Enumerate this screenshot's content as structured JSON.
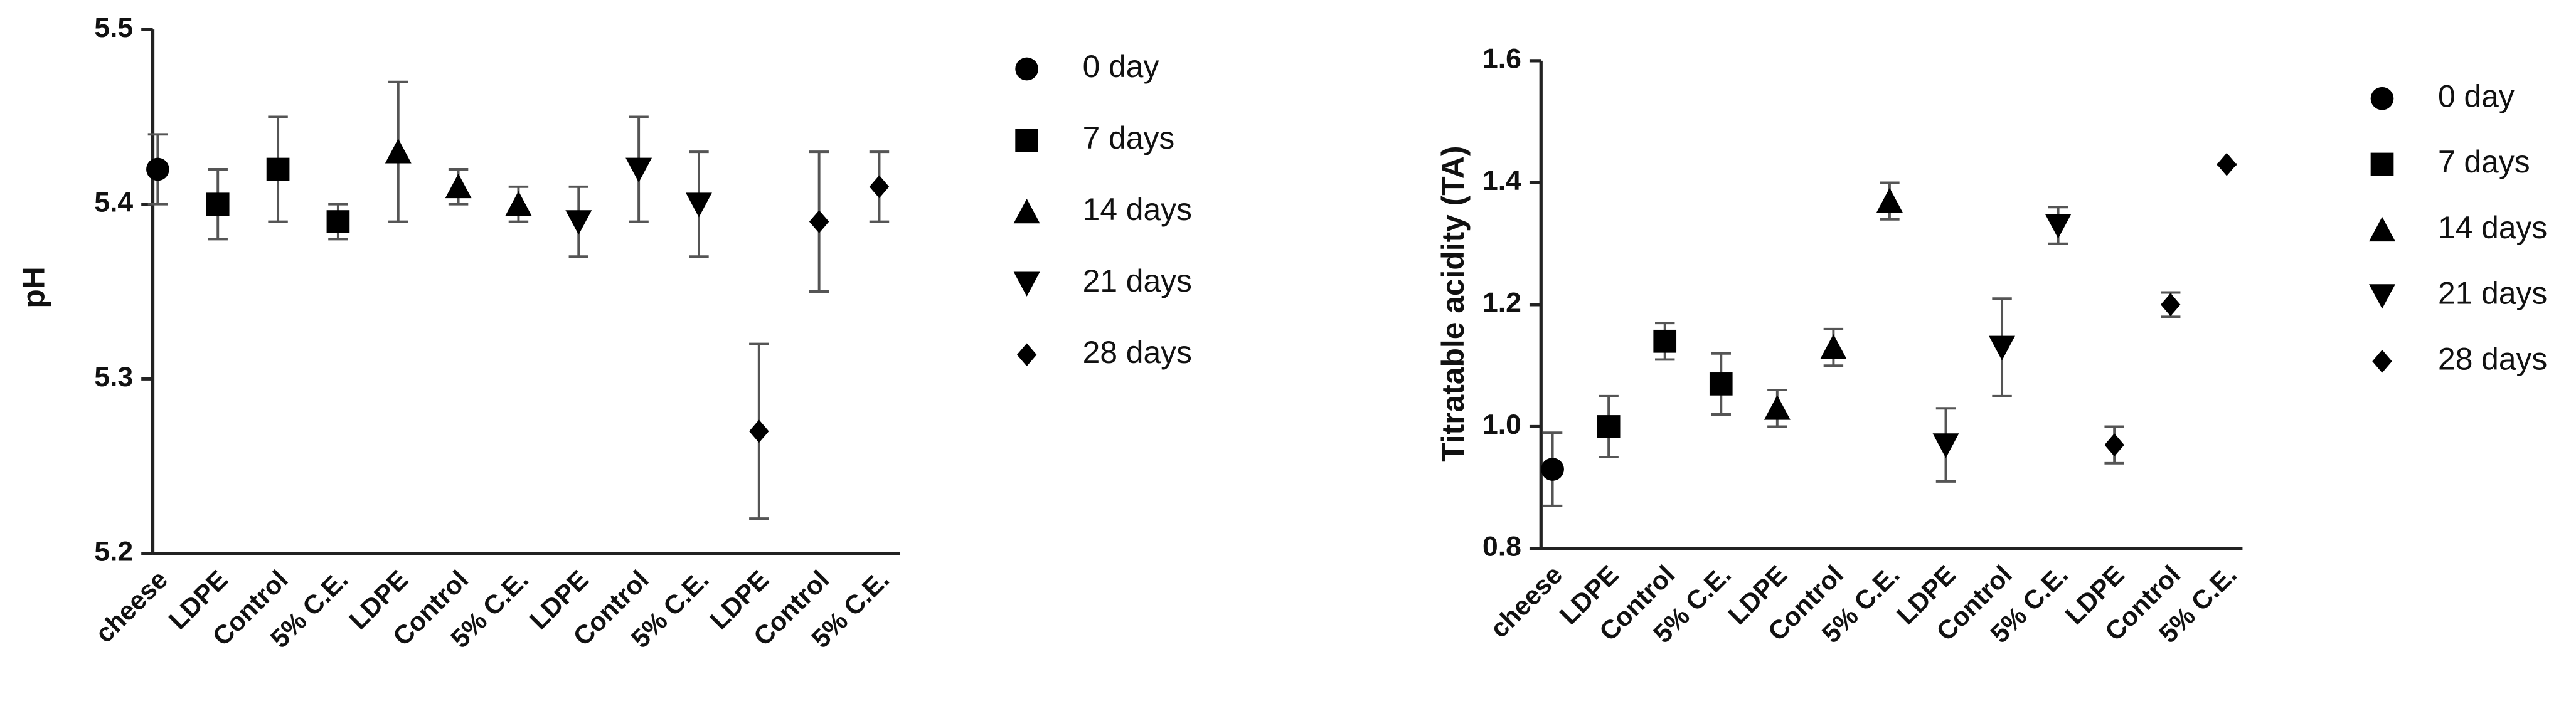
{
  "chart_data": [
    {
      "type": "scatter",
      "ylabel": "pH",
      "categories": [
        "cheese",
        "LDPE",
        "Control",
        "5% C.E.",
        "LDPE",
        "Control",
        "5% C.E.",
        "LDPE",
        "Control",
        "5% C.E.",
        "LDPE",
        "Control",
        "5% C.E."
      ],
      "ylim": [
        5.2,
        5.5
      ],
      "yticks": [
        5.2,
        5.3,
        5.4,
        5.5
      ],
      "series": [
        {
          "name": "0 day",
          "color": "#000000",
          "marker": "circle",
          "values": [
            5.42,
            null,
            null,
            null,
            null,
            null,
            null,
            null,
            null,
            null,
            null,
            null,
            null
          ],
          "errors": [
            0.02,
            null,
            null,
            null,
            null,
            null,
            null,
            null,
            null,
            null,
            null,
            null,
            null
          ]
        },
        {
          "name": "7 days",
          "color": "#000000",
          "marker": "square",
          "values": [
            null,
            5.4,
            5.42,
            5.39,
            null,
            null,
            null,
            null,
            null,
            null,
            null,
            null,
            null
          ],
          "errors": [
            null,
            0.02,
            0.03,
            0.01,
            null,
            null,
            null,
            null,
            null,
            null,
            null,
            null,
            null
          ]
        },
        {
          "name": "14 days",
          "color": "#000000",
          "marker": "triangle-up",
          "values": [
            null,
            null,
            null,
            null,
            5.43,
            5.41,
            5.4,
            null,
            null,
            null,
            null,
            null,
            null
          ],
          "errors": [
            null,
            null,
            null,
            null,
            0.04,
            0.01,
            0.01,
            null,
            null,
            null,
            null,
            null,
            null
          ]
        },
        {
          "name": "21 days",
          "color": "#000000",
          "marker": "triangle-down",
          "values": [
            null,
            null,
            null,
            null,
            null,
            null,
            null,
            5.39,
            5.42,
            5.4,
            null,
            null,
            null
          ],
          "errors": [
            null,
            null,
            null,
            null,
            null,
            null,
            null,
            0.02,
            0.03,
            0.03,
            null,
            null,
            null
          ]
        },
        {
          "name": "28 days",
          "color": "#000000",
          "marker": "diamond",
          "values": [
            null,
            null,
            null,
            null,
            null,
            null,
            null,
            null,
            null,
            null,
            5.27,
            5.39,
            5.41
          ],
          "errors": [
            null,
            null,
            null,
            null,
            null,
            null,
            null,
            null,
            null,
            null,
            0.05,
            0.04,
            0.02
          ]
        }
      ]
    },
    {
      "type": "scatter",
      "ylabel": "Titratable acidity (TA)",
      "categories": [
        "cheese",
        "LDPE",
        "Control",
        "5% C.E.",
        "LDPE",
        "Control",
        "5% C.E.",
        "LDPE",
        "Control",
        "5% C.E.",
        "LDPE",
        "Control",
        "5% C.E."
      ],
      "ylim": [
        0.8,
        1.6
      ],
      "yticks": [
        0.8,
        {
          "value": 1,
          "label": "1.0"
        },
        1.2,
        1.4,
        1.6
      ],
      "series": [
        {
          "name": "0 day",
          "color": "#000000",
          "marker": "circle",
          "values": [
            0.93,
            null,
            null,
            null,
            null,
            null,
            null,
            null,
            null,
            null,
            null,
            null,
            null
          ],
          "errors": [
            0.06,
            null,
            null,
            null,
            null,
            null,
            null,
            null,
            null,
            null,
            null,
            null,
            null
          ]
        },
        {
          "name": "7 days",
          "color": "#000000",
          "marker": "square",
          "values": [
            null,
            1.0,
            1.14,
            1.07,
            null,
            null,
            null,
            null,
            null,
            null,
            null,
            null,
            null
          ],
          "errors": [
            null,
            0.05,
            0.03,
            0.05,
            null,
            null,
            null,
            null,
            null,
            null,
            null,
            null,
            null
          ]
        },
        {
          "name": "14 days",
          "color": "#000000",
          "marker": "triangle-up",
          "values": [
            null,
            null,
            null,
            null,
            1.03,
            1.13,
            1.37,
            null,
            null,
            null,
            null,
            null,
            null
          ],
          "errors": [
            null,
            null,
            null,
            null,
            0.03,
            0.03,
            0.03,
            null,
            null,
            null,
            null,
            null,
            null
          ]
        },
        {
          "name": "21 days",
          "color": "#000000",
          "marker": "triangle-down",
          "values": [
            null,
            null,
            null,
            null,
            null,
            null,
            null,
            0.97,
            1.13,
            1.33,
            null,
            null,
            null
          ],
          "errors": [
            null,
            null,
            null,
            null,
            null,
            null,
            null,
            0.06,
            0.08,
            0.03,
            null,
            null,
            null
          ]
        },
        {
          "name": "28 days",
          "color": "#000000",
          "marker": "diamond",
          "values": [
            null,
            null,
            null,
            null,
            null,
            null,
            null,
            null,
            null,
            null,
            0.97,
            1.2,
            1.43
          ],
          "errors": [
            null,
            null,
            null,
            null,
            null,
            null,
            null,
            null,
            null,
            null,
            0.03,
            0.02,
            0
          ]
        }
      ]
    }
  ]
}
